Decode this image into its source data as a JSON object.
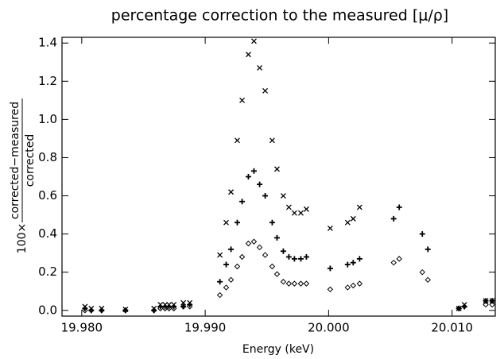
{
  "chart_data": {
    "type": "scatter",
    "title": "percentage correction to the measured [μ/ρ]",
    "x_label": "Energy (keV)",
    "y_label": {
      "prefix": "100×",
      "numerator": "corrected−measured",
      "denominator": "corrected"
    },
    "xlim": [
      19.9784,
      20.0135
    ],
    "ylim": [
      -0.03,
      1.43
    ],
    "xticks": [
      {
        "value": 19.98,
        "label": "19.980"
      },
      {
        "value": 19.99,
        "label": "19.990"
      },
      {
        "value": 20.0,
        "label": "20.000"
      },
      {
        "value": 20.01,
        "label": "20.010"
      }
    ],
    "yticks": [
      {
        "value": 0,
        "label": "0.0"
      },
      0.2,
      0.4,
      0.6,
      0.8,
      {
        "value": 1,
        "label": "1.0"
      },
      1.2,
      1.4
    ],
    "x": [
      19.98026,
      19.98077,
      19.98161,
      19.98354,
      19.98585,
      19.98637,
      19.98675,
      19.98707,
      19.98746,
      19.98823,
      19.98875,
      19.99119,
      19.9917,
      19.99209,
      19.9926,
      19.99299,
      19.9935,
      19.99395,
      19.99441,
      19.99486,
      19.99543,
      19.99582,
      19.99633,
      19.99678,
      19.99723,
      19.99775,
      19.9982,
      20.00013,
      20.00154,
      20.00199,
      20.00251,
      20.00527,
      20.00572,
      20.00759,
      20.00804,
      20.01055,
      20.011,
      20.01273,
      20.01325
    ],
    "series": [
      {
        "marker": "x",
        "color": "#000000",
        "values": [
          0.02,
          0.01,
          0.01,
          0.005,
          0.01,
          0.03,
          0.03,
          0.03,
          0.03,
          0.04,
          0.04,
          0.29,
          0.46,
          0.62,
          0.89,
          1.1,
          1.34,
          1.41,
          1.27,
          1.15,
          0.89,
          0.74,
          0.6,
          0.54,
          0.51,
          0.51,
          0.53,
          0.43,
          0.46,
          0.48,
          0.54,
          null,
          null,
          null,
          null,
          0.01,
          0.03,
          0.05,
          0.05
        ]
      },
      {
        "marker": "+",
        "color": "#000000",
        "values": [
          0.01,
          0.0,
          0.0,
          0.0,
          0.0,
          0.02,
          0.02,
          0.02,
          0.02,
          0.02,
          0.03,
          0.15,
          0.24,
          0.32,
          0.46,
          0.57,
          0.7,
          0.73,
          0.66,
          0.6,
          0.46,
          0.38,
          0.31,
          0.28,
          0.27,
          0.27,
          0.28,
          0.22,
          0.24,
          0.25,
          0.27,
          0.48,
          0.54,
          0.4,
          0.32,
          0.01,
          0.02,
          0.05,
          0.05
        ]
      },
      {
        "marker": "diamond",
        "color": "#000000",
        "values": [
          0.0,
          0.0,
          0.0,
          0.0,
          0.0,
          0.01,
          0.01,
          0.01,
          0.01,
          0.02,
          0.02,
          0.08,
          0.12,
          0.16,
          0.23,
          0.28,
          0.35,
          0.36,
          0.33,
          0.29,
          0.23,
          0.19,
          0.15,
          0.14,
          0.14,
          0.14,
          0.14,
          0.11,
          0.12,
          0.13,
          0.14,
          0.25,
          0.27,
          0.2,
          0.16,
          0.01,
          0.02,
          0.03,
          0.03
        ]
      }
    ]
  }
}
